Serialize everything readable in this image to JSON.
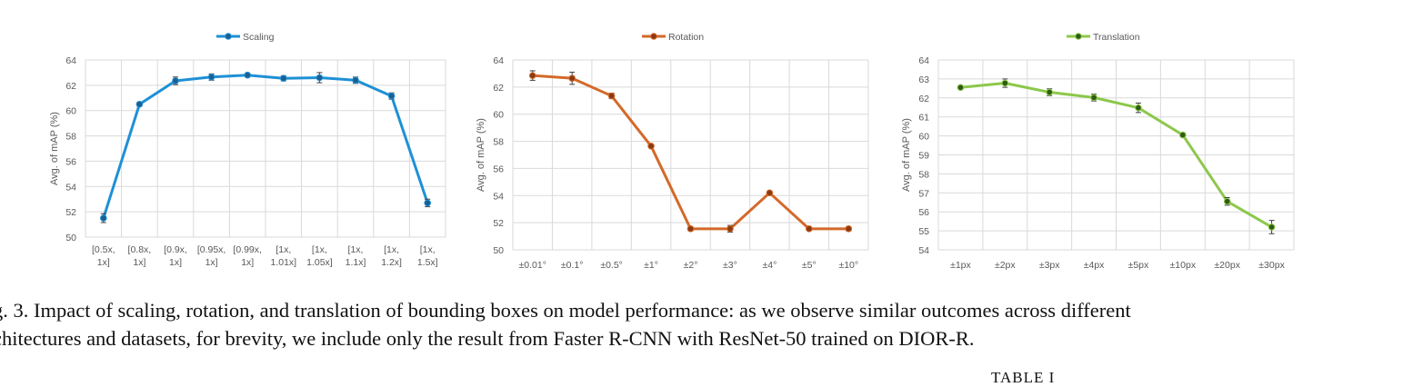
{
  "chart_data": [
    {
      "type": "line",
      "color": "#1e90d6",
      "marker_color": "#1a5f93",
      "categories": [
        [
          "[0.5x,",
          "1x]"
        ],
        [
          "[0.8x,",
          "1x]"
        ],
        [
          "[0.9x,",
          "1x]"
        ],
        [
          "[0.95x,",
          "1x]"
        ],
        [
          "[0.99x,",
          "1x]"
        ],
        [
          "[1x,",
          "1.01x]"
        ],
        [
          "[1x,",
          "1.05x]"
        ],
        [
          "[1x,",
          "1.1x]"
        ],
        [
          "[1x,",
          "1.2x]"
        ],
        [
          "[1x,",
          "1.5x]"
        ]
      ],
      "series": [
        {
          "name": "Scaling",
          "values": [
            51.5,
            60.5,
            62.35,
            62.65,
            62.8,
            62.55,
            62.6,
            62.4,
            61.15,
            52.7
          ],
          "errors": [
            0.35,
            0.15,
            0.3,
            0.25,
            0.15,
            0.2,
            0.4,
            0.25,
            0.25,
            0.3
          ]
        }
      ],
      "title": "",
      "xlabel": "",
      "ylabel": "Avg. of mAP (%)",
      "ylim": [
        50,
        64
      ],
      "yticks": [
        50,
        52,
        54,
        56,
        58,
        60,
        62,
        64
      ],
      "grid": true,
      "legend": "top-center"
    },
    {
      "type": "line",
      "color": "#d4692a",
      "marker_color": "#8a3a12",
      "categories": [
        "±0.01°",
        "±0.1°",
        "±0.5°",
        "±1°",
        "±2°",
        "±3°",
        "±4°",
        "±5°",
        "±10°"
      ],
      "series": [
        {
          "name": "Rotation",
          "values": [
            62.85,
            62.65,
            61.35,
            57.65,
            51.55,
            51.55,
            54.2,
            51.55,
            51.55
          ],
          "errors": [
            0.35,
            0.45,
            0.2,
            0.1,
            0.15,
            0.25,
            0.1,
            0.1,
            0.15
          ]
        }
      ],
      "title": "",
      "xlabel": "",
      "ylabel": "Avg. of mAP (%)",
      "ylim": [
        50,
        64
      ],
      "yticks": [
        50,
        52,
        54,
        56,
        58,
        60,
        62,
        64
      ],
      "grid": true,
      "legend": "top-center"
    },
    {
      "type": "line",
      "color": "#8cc84b",
      "marker_color": "#2f5c12",
      "categories": [
        "±1px",
        "±2px",
        "±3px",
        "±4px",
        "±5px",
        "±10px",
        "±20px",
        "±30px"
      ],
      "series": [
        {
          "name": "Translation",
          "values": [
            62.55,
            62.78,
            62.3,
            62.02,
            61.48,
            60.05,
            56.55,
            55.2
          ],
          "errors": [
            0.08,
            0.22,
            0.18,
            0.18,
            0.25,
            0.1,
            0.2,
            0.35
          ]
        }
      ],
      "title": "",
      "xlabel": "",
      "ylabel": "Avg. of mAP (%)",
      "ylim": [
        54,
        64
      ],
      "yticks": [
        54,
        55,
        56,
        57,
        58,
        59,
        60,
        61,
        62,
        63,
        64
      ],
      "grid": true,
      "legend": "top-center"
    }
  ],
  "caption": {
    "line1": "g. 3.  Impact of scaling, rotation, and translation of bounding boxes on model performance: as we observe similar outcomes across different",
    "line2": "chitectures and datasets, for brevity, we include only the result from Faster R-CNN with ResNet-50 trained on DIOR-R."
  },
  "table_label": "TABLE I"
}
